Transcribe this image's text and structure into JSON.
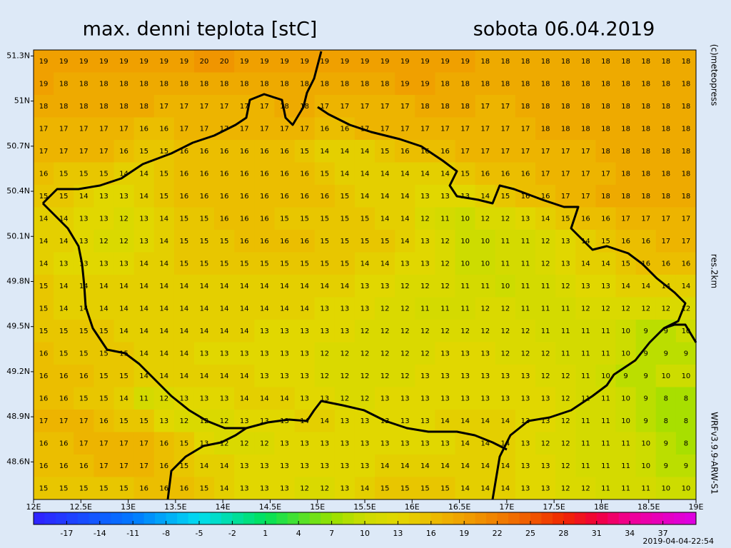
{
  "map": {
    "title": "max. denni teplota [stC]",
    "date": "sobota 06.04.2019",
    "credit": "(c)meteopress",
    "resolution": "res.2km",
    "model": "WRFv3.9.9-ARW-S1",
    "timestamp": "2019-04-04-22:54",
    "lonlim": [
      12,
      19
    ],
    "latlim": [
      48.35,
      51.34
    ],
    "lon_ticks": [
      {
        "value": 12,
        "label": "12E"
      },
      {
        "value": 12.5,
        "label": "12.5E"
      },
      {
        "value": 13,
        "label": "13E"
      },
      {
        "value": 13.5,
        "label": "13.5E"
      },
      {
        "value": 14,
        "label": "14E"
      },
      {
        "value": 14.5,
        "label": "14.5E"
      },
      {
        "value": 15,
        "label": "15E"
      },
      {
        "value": 15.5,
        "label": "15.5E"
      },
      {
        "value": 16,
        "label": "16E"
      },
      {
        "value": 16.5,
        "label": "16.5E"
      },
      {
        "value": 17,
        "label": "17E"
      },
      {
        "value": 17.5,
        "label": "17.5E"
      },
      {
        "value": 18,
        "label": "18E"
      },
      {
        "value": 18.5,
        "label": "18.5E"
      },
      {
        "value": 19,
        "label": "19E"
      }
    ],
    "lat_ticks": [
      {
        "value": 51.3,
        "label": "51.3N"
      },
      {
        "value": 51,
        "label": "51N"
      },
      {
        "value": 50.7,
        "label": "50.7N"
      },
      {
        "value": 50.4,
        "label": "50.4N"
      },
      {
        "value": 50.1,
        "label": "50.1N"
      },
      {
        "value": 49.8,
        "label": "49.8N"
      },
      {
        "value": 49.5,
        "label": "49.5N"
      },
      {
        "value": 49.2,
        "label": "49.2N"
      },
      {
        "value": 48.9,
        "label": "48.9N"
      },
      {
        "value": 48.6,
        "label": "48.6N"
      }
    ],
    "colorbar": {
      "clim": [
        -20,
        40
      ],
      "ticks": [
        -17,
        -14,
        -11,
        -8,
        -5,
        -2,
        1,
        4,
        7,
        10,
        13,
        16,
        19,
        22,
        25,
        28,
        31,
        34,
        37
      ]
    },
    "grid": [
      [
        19,
        19,
        19,
        19,
        19,
        19,
        19,
        19,
        20,
        20,
        19,
        19,
        19,
        19,
        19,
        19,
        19,
        19,
        19,
        19,
        19,
        19,
        18,
        18,
        18,
        18,
        18,
        18,
        18,
        18,
        18,
        18,
        18
      ],
      [
        19,
        18,
        18,
        18,
        18,
        18,
        18,
        18,
        18,
        18,
        18,
        18,
        18,
        18,
        18,
        18,
        18,
        18,
        19,
        19,
        18,
        18,
        18,
        18,
        18,
        18,
        18,
        18,
        18,
        18,
        18,
        18,
        18
      ],
      [
        18,
        18,
        18,
        18,
        18,
        18,
        17,
        17,
        17,
        17,
        17,
        17,
        18,
        18,
        17,
        17,
        17,
        17,
        17,
        18,
        18,
        18,
        17,
        17,
        18,
        18,
        18,
        18,
        18,
        18,
        18,
        18,
        18
      ],
      [
        17,
        17,
        17,
        17,
        17,
        16,
        16,
        17,
        17,
        17,
        17,
        17,
        17,
        17,
        16,
        16,
        17,
        17,
        17,
        17,
        17,
        17,
        17,
        17,
        17,
        18,
        18,
        18,
        18,
        18,
        18,
        18,
        18
      ],
      [
        17,
        17,
        17,
        17,
        16,
        15,
        15,
        16,
        16,
        16,
        16,
        16,
        16,
        15,
        14,
        14,
        14,
        15,
        16,
        16,
        16,
        17,
        17,
        17,
        17,
        17,
        17,
        17,
        18,
        18,
        18,
        18,
        18
      ],
      [
        16,
        15,
        15,
        15,
        14,
        14,
        15,
        16,
        16,
        16,
        16,
        16,
        16,
        16,
        15,
        14,
        14,
        14,
        14,
        14,
        14,
        15,
        16,
        16,
        16,
        17,
        17,
        17,
        17,
        18,
        18,
        18,
        18
      ],
      [
        15,
        15,
        14,
        13,
        13,
        14,
        15,
        16,
        16,
        16,
        16,
        16,
        16,
        16,
        16,
        15,
        14,
        14,
        14,
        13,
        13,
        13,
        14,
        15,
        16,
        16,
        17,
        17,
        18,
        18,
        18,
        18,
        18
      ],
      [
        14,
        14,
        13,
        13,
        12,
        13,
        14,
        15,
        15,
        16,
        16,
        16,
        15,
        15,
        15,
        15,
        15,
        14,
        14,
        12,
        11,
        10,
        12,
        12,
        13,
        14,
        15,
        16,
        16,
        17,
        17,
        17,
        17
      ],
      [
        14,
        14,
        13,
        12,
        12,
        13,
        14,
        15,
        15,
        15,
        16,
        16,
        16,
        16,
        15,
        15,
        15,
        15,
        14,
        13,
        12,
        10,
        10,
        11,
        11,
        12,
        13,
        14,
        15,
        16,
        16,
        17,
        17
      ],
      [
        14,
        13,
        13,
        13,
        13,
        14,
        14,
        15,
        15,
        15,
        15,
        15,
        15,
        15,
        15,
        15,
        14,
        14,
        13,
        13,
        12,
        10,
        10,
        11,
        11,
        12,
        13,
        14,
        14,
        15,
        16,
        16,
        16
      ],
      [
        15,
        14,
        14,
        14,
        14,
        14,
        14,
        14,
        14,
        14,
        14,
        14,
        14,
        14,
        14,
        14,
        13,
        13,
        12,
        12,
        12,
        11,
        11,
        10,
        11,
        11,
        12,
        13,
        13,
        14,
        14,
        14,
        14
      ],
      [
        15,
        14,
        14,
        14,
        14,
        14,
        14,
        14,
        14,
        14,
        14,
        14,
        14,
        14,
        13,
        13,
        13,
        12,
        12,
        11,
        11,
        11,
        12,
        12,
        11,
        11,
        11,
        12,
        12,
        12,
        12,
        12,
        12
      ],
      [
        15,
        15,
        15,
        15,
        14,
        14,
        14,
        14,
        14,
        14,
        14,
        13,
        13,
        13,
        13,
        13,
        12,
        12,
        12,
        12,
        12,
        12,
        12,
        12,
        12,
        11,
        11,
        11,
        11,
        10,
        9,
        9,
        10
      ],
      [
        16,
        15,
        15,
        15,
        15,
        14,
        14,
        14,
        13,
        13,
        13,
        13,
        13,
        13,
        12,
        12,
        12,
        12,
        12,
        12,
        13,
        13,
        13,
        12,
        12,
        12,
        11,
        11,
        11,
        10,
        9,
        9,
        9
      ],
      [
        16,
        16,
        16,
        15,
        15,
        14,
        14,
        14,
        14,
        14,
        14,
        13,
        13,
        13,
        12,
        12,
        12,
        12,
        12,
        13,
        13,
        13,
        13,
        13,
        13,
        12,
        12,
        11,
        10,
        9,
        9,
        10,
        10
      ],
      [
        16,
        16,
        15,
        15,
        14,
        11,
        12,
        13,
        13,
        13,
        14,
        14,
        14,
        13,
        13,
        12,
        12,
        13,
        13,
        13,
        13,
        13,
        13,
        13,
        13,
        13,
        12,
        11,
        11,
        10,
        9,
        8,
        8
      ],
      [
        17,
        17,
        17,
        16,
        15,
        15,
        13,
        12,
        12,
        12,
        13,
        13,
        13,
        14,
        14,
        13,
        13,
        13,
        13,
        13,
        14,
        14,
        14,
        14,
        13,
        13,
        12,
        11,
        11,
        10,
        9,
        8,
        8
      ],
      [
        16,
        16,
        17,
        17,
        17,
        17,
        16,
        15,
        13,
        12,
        12,
        12,
        13,
        13,
        13,
        13,
        13,
        13,
        13,
        13,
        13,
        14,
        14,
        14,
        13,
        12,
        12,
        11,
        11,
        11,
        10,
        9,
        8
      ],
      [
        16,
        16,
        16,
        17,
        17,
        17,
        16,
        15,
        14,
        14,
        13,
        13,
        13,
        13,
        13,
        13,
        13,
        14,
        14,
        14,
        14,
        14,
        14,
        14,
        13,
        13,
        12,
        11,
        11,
        11,
        10,
        9,
        9
      ],
      [
        15,
        15,
        15,
        15,
        15,
        16,
        16,
        16,
        15,
        14,
        13,
        13,
        13,
        12,
        12,
        13,
        14,
        15,
        15,
        15,
        15,
        14,
        14,
        14,
        13,
        13,
        12,
        12,
        11,
        11,
        11,
        10,
        10
      ]
    ]
  }
}
